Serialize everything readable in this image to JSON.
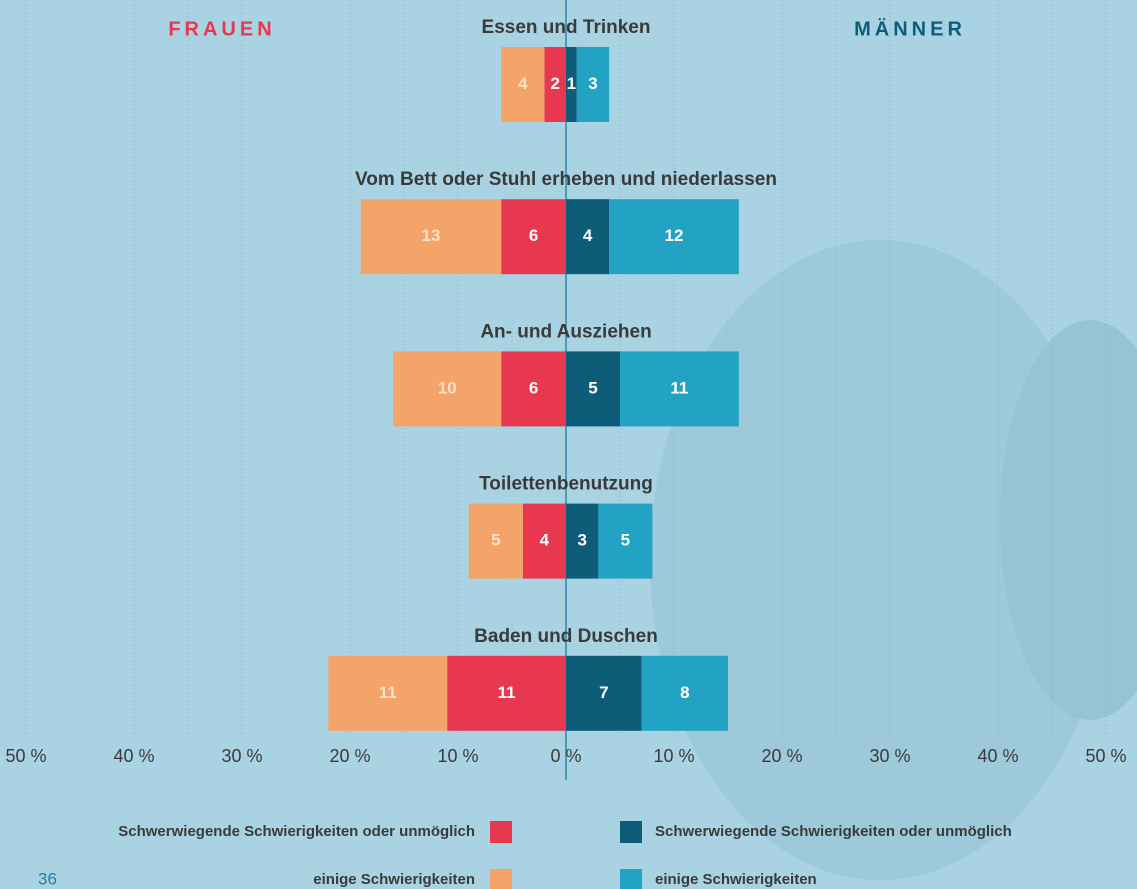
{
  "chart_data": {
    "type": "bar",
    "categories": [
      "Essen und Trinken",
      "Vom Bett oder Stuhl erheben und niederlassen",
      "An- und Ausziehen",
      "Toilettenbenutzung",
      "Baden und Duschen"
    ],
    "groups": [
      {
        "name": "FRAUEN",
        "side": "left",
        "color": "#e8384f",
        "series": [
          {
            "name": "Schwerwiegende Schwierigkeiten oder unmöglich",
            "color": "#e8384f",
            "values": [
              2,
              6,
              6,
              4,
              11
            ]
          },
          {
            "name": "einige Schwierigkeiten",
            "color": "#f4a468",
            "values": [
              4,
              13,
              10,
              5,
              11
            ]
          }
        ]
      },
      {
        "name": "MÄNNER",
        "side": "right",
        "color": "#0d5d78",
        "series": [
          {
            "name": "Schwerwiegende Schwierigkeiten oder unmöglich",
            "color": "#0d5d78",
            "values": [
              1,
              4,
              5,
              3,
              7
            ]
          },
          {
            "name": "einige Schwierigkeiten",
            "color": "#22a3c4",
            "values": [
              3,
              12,
              11,
              5,
              8
            ]
          }
        ]
      }
    ],
    "xlim": [
      -50,
      50
    ],
    "xticks": [
      {
        "value": -50,
        "label": "50 %"
      },
      {
        "value": -40,
        "label": "40 %"
      },
      {
        "value": -30,
        "label": "30 %"
      },
      {
        "value": -20,
        "label": "20 %"
      },
      {
        "value": -10,
        "label": "10 %"
      },
      {
        "value": 0,
        "label": "0 %"
      },
      {
        "value": 10,
        "label": "10 %"
      },
      {
        "value": 20,
        "label": "20 %"
      },
      {
        "value": 30,
        "label": "30 %"
      },
      {
        "value": 40,
        "label": "40 %"
      },
      {
        "value": 50,
        "label": "50 %"
      }
    ],
    "xminorticks": [
      -45,
      -35,
      -25,
      -15,
      -5,
      5,
      15,
      25,
      35,
      45
    ],
    "grid": true
  },
  "page_number": "36"
}
